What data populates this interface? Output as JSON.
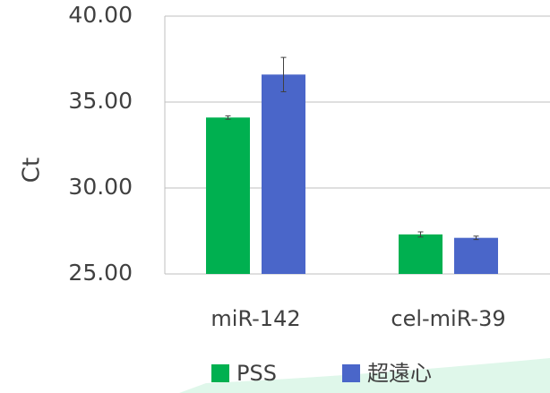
{
  "chart_data": {
    "type": "bar",
    "y_label": "Ct",
    "categories": [
      "miR-142",
      "cel-miR-39"
    ],
    "series": [
      {
        "name": "PSS",
        "color": "#00b050",
        "values": [
          34.1,
          27.3
        ],
        "errors": [
          0.1,
          0.15
        ]
      },
      {
        "name": "超遠心",
        "color": "#4a66c9",
        "values": [
          36.6,
          27.1
        ],
        "errors": [
          1.0,
          0.1
        ]
      }
    ],
    "ylim": [
      25,
      40
    ],
    "yticks": [
      {
        "value": 25,
        "label": "25.00"
      },
      {
        "value": 30,
        "label": "30.00"
      },
      {
        "value": 35,
        "label": "35.00"
      },
      {
        "value": 40,
        "label": "40.00"
      }
    ],
    "grid": true
  }
}
